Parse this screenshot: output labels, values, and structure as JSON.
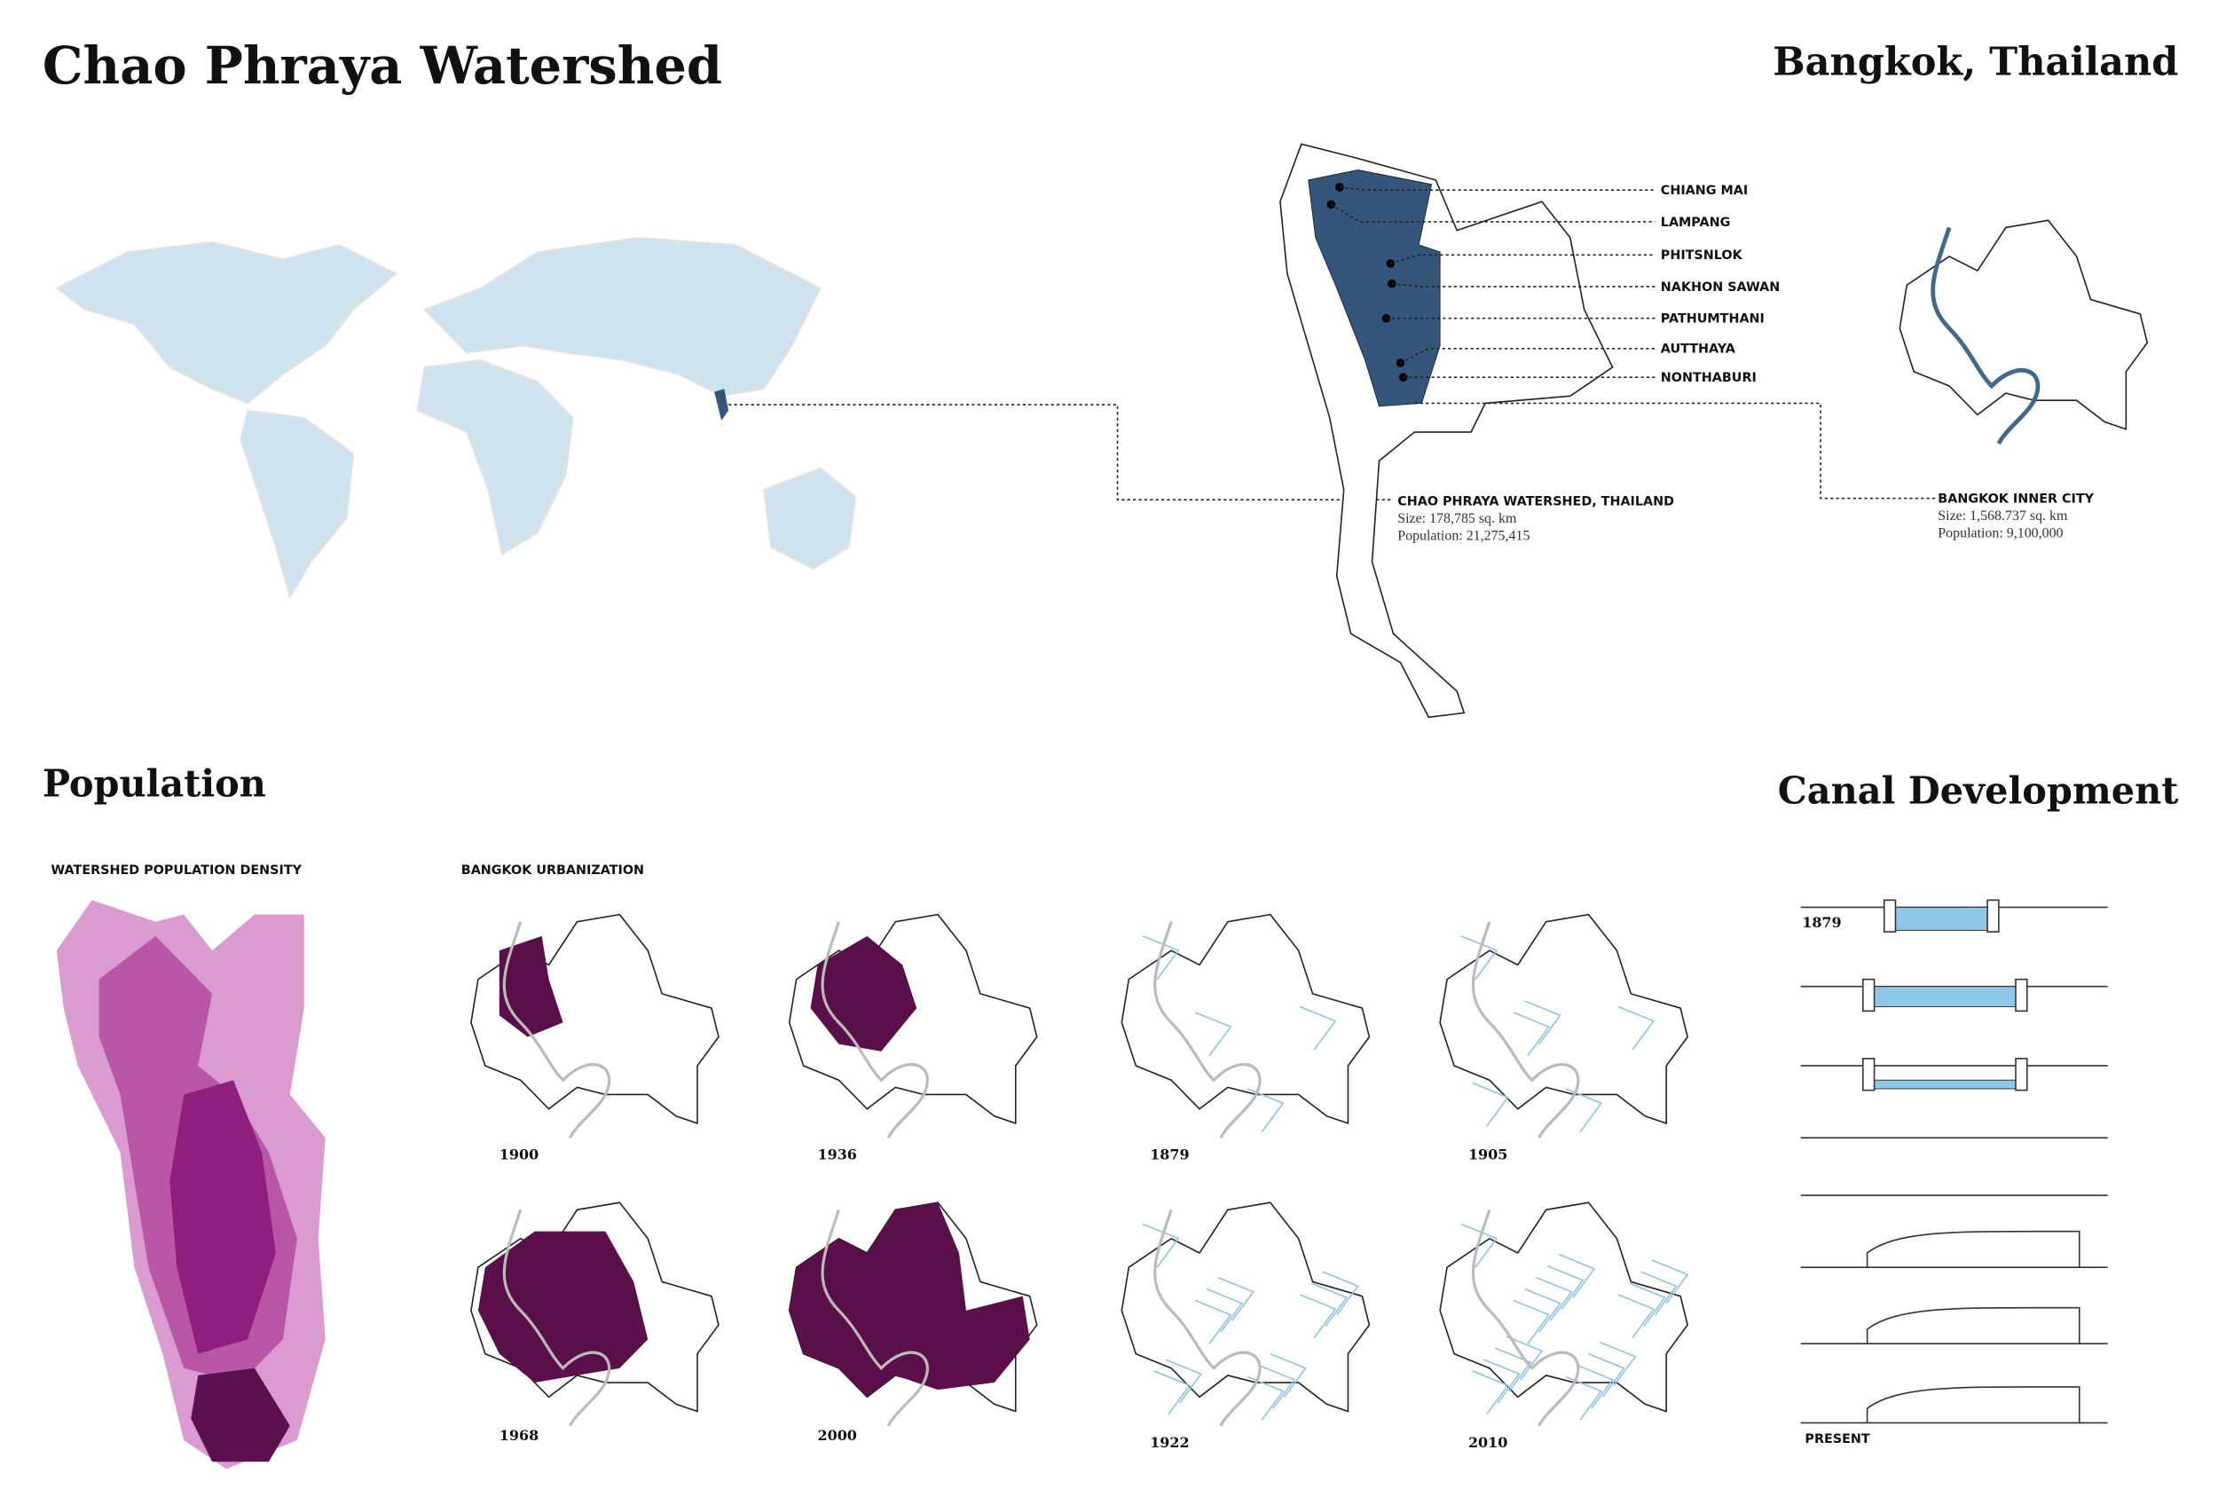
{
  "header": {
    "title": "Chao Phraya Watershed",
    "location": "Bangkok, Thailand"
  },
  "watershed_map": {
    "cities": [
      "CHIANG MAI",
      "LAMPANG",
      "PHITSNLOK",
      "NAKHON SAWAN",
      "PATHUMTHANI",
      "AUTTHAYA",
      "NONTHABURI"
    ],
    "caption": {
      "title": "CHAO PHRAYA WATERSHED, THAILAND",
      "size": "Size: 178,785 sq. km",
      "population": "Population: 21,275,415"
    }
  },
  "bangkok_map": {
    "title": "BANGKOK INNER CITY",
    "size": "Size: 1,568.737 sq. km",
    "population": "Population: 9,100,000"
  },
  "population": {
    "title": "Population",
    "density_label": "WATERSHED POPULATION DENSITY",
    "urbanization_label": "BANGKOK URBANIZATION",
    "years": [
      "1900",
      "1936",
      "1879",
      "1905",
      "1968",
      "2000",
      "1922",
      "2010"
    ]
  },
  "canal": {
    "title": "Canal Development",
    "first": "1879",
    "last": "PRESENT"
  }
}
